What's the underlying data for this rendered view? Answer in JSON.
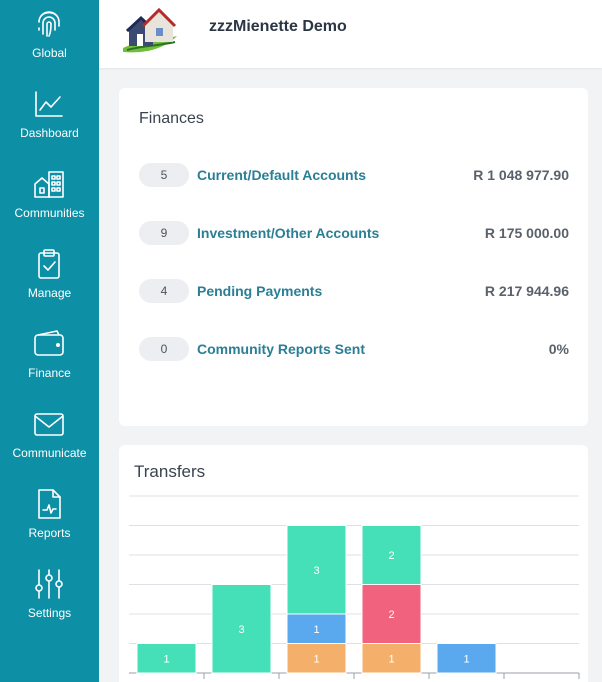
{
  "sidebar": {
    "items": [
      {
        "label": "Global",
        "icon": "fingerprint-icon"
      },
      {
        "label": "Dashboard",
        "icon": "line-chart-icon"
      },
      {
        "label": "Communities",
        "icon": "buildings-icon"
      },
      {
        "label": "Manage",
        "icon": "clipboard-check-icon"
      },
      {
        "label": "Finance",
        "icon": "wallet-icon"
      },
      {
        "label": "Communicate",
        "icon": "envelope-icon"
      },
      {
        "label": "Reports",
        "icon": "report-document-icon"
      },
      {
        "label": "Settings",
        "icon": "sliders-icon"
      }
    ],
    "bg_color": "#0d8fa6"
  },
  "header": {
    "company_name": "zzzMienette Demo",
    "logo": "house-logo"
  },
  "finances": {
    "title": "Finances",
    "rows": [
      {
        "count": "5",
        "label": "Current/Default Accounts",
        "amount": "R 1 048 977.90"
      },
      {
        "count": "9",
        "label": "Investment/Other Accounts",
        "amount": "R 175 000.00"
      },
      {
        "count": "4",
        "label": "Pending Payments",
        "amount": "R 217 944.96"
      },
      {
        "count": "0",
        "label": "Community Reports Sent",
        "amount": "0%"
      }
    ]
  },
  "transfers": {
    "title": "Transfers"
  },
  "chart_data": {
    "type": "bar",
    "stacked": true,
    "categories": [
      "",
      "",
      "",
      "",
      "",
      ""
    ],
    "ylim": [
      0,
      6
    ],
    "grid": true,
    "series": [
      {
        "color": "#f4b06a",
        "values": [
          0,
          0,
          1,
          1,
          0,
          0
        ]
      },
      {
        "color": "#5aa9ef",
        "values": [
          0,
          0,
          1,
          0,
          1,
          0
        ]
      },
      {
        "color": "#f0627e",
        "values": [
          0,
          0,
          0,
          2,
          0,
          0
        ]
      },
      {
        "color": "#46e0b8",
        "values": [
          1,
          3,
          3,
          2,
          0,
          0
        ]
      }
    ]
  }
}
